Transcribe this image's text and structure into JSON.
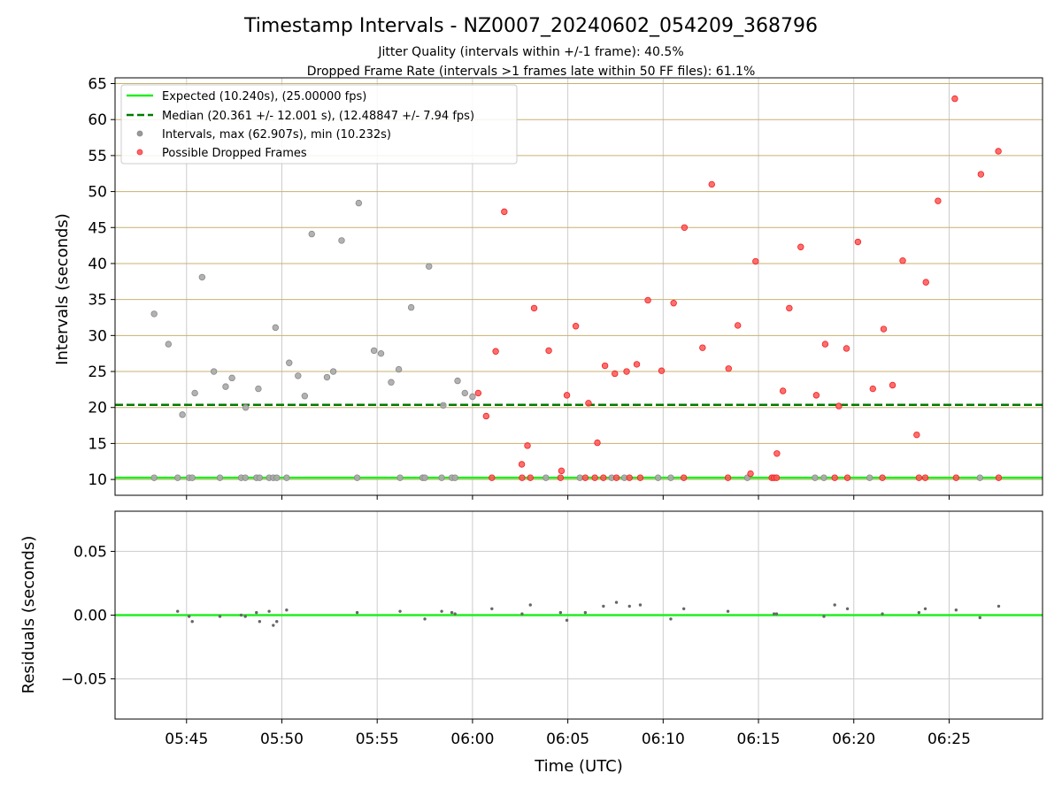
{
  "chart_data": [
    {
      "type": "scatter",
      "title": "Timestamp Intervals - NZ0007_20240602_054209_368796",
      "subtitle_1": "Jitter Quality (intervals within +/-1 frame): 40.5%",
      "subtitle_2": "Dropped Frame Rate (intervals >1 frames late within 50 FF files): 61.1%",
      "ylabel": "Intervals (seconds)",
      "ylim": [
        7.8,
        65.8
      ],
      "yticks": [
        "10",
        "15",
        "20",
        "25",
        "30",
        "35",
        "40",
        "45",
        "50",
        "55",
        "60",
        "65"
      ],
      "xlim": [
        "05:41:15",
        "06:29:54"
      ],
      "legend": {
        "placement": "top-left",
        "expected": "Expected (10.240s), (25.00000 fps)",
        "median": "Median (20.361 +/- 12.001 s), (12.48847 +/- 7.94 fps)",
        "intervals": "Intervals, max (62.907s), min (10.232s)",
        "dropped": "Possible Dropped Frames"
      },
      "expected_line": 10.24,
      "median_line": 20.361,
      "colors": {
        "expected": "#22ee22",
        "median": "#007a00",
        "intervals": "#999999",
        "dropped": "#ff4444",
        "grid": "#c8b070"
      },
      "intervals": [
        [
          "05:43:18",
          33.0
        ],
        [
          "05:44:03",
          28.8
        ],
        [
          "05:44:47",
          19.0
        ],
        [
          "05:45:26",
          22.0
        ],
        [
          "05:45:49",
          38.1
        ],
        [
          "05:46:26",
          25.0
        ],
        [
          "05:47:03",
          22.9
        ],
        [
          "05:47:23",
          24.1
        ],
        [
          "05:48:06",
          20.0
        ],
        [
          "05:48:46",
          22.6
        ],
        [
          "05:49:40",
          31.1
        ],
        [
          "05:50:23",
          26.2
        ],
        [
          "05:50:51",
          24.4
        ],
        [
          "05:51:12",
          21.6
        ],
        [
          "05:51:34",
          44.1
        ],
        [
          "05:52:22",
          24.2
        ],
        [
          "05:52:42",
          25.0
        ],
        [
          "05:53:08",
          43.2
        ],
        [
          "05:54:02",
          48.4
        ],
        [
          "05:54:50",
          27.9
        ],
        [
          "05:55:12",
          27.5
        ],
        [
          "05:55:44",
          23.5
        ],
        [
          "05:56:08",
          25.3
        ],
        [
          "05:56:47",
          33.9
        ],
        [
          "05:57:43",
          39.6
        ],
        [
          "05:58:28",
          20.3
        ],
        [
          "05:59:13",
          23.7
        ],
        [
          "05:59:36",
          22.0
        ],
        [
          "06:00:00",
          21.5
        ],
        [
          "05:43:18",
          10.24
        ],
        [
          "05:44:32",
          10.24
        ],
        [
          "05:45:08",
          10.24
        ],
        [
          "05:45:18",
          10.24
        ],
        [
          "05:46:45",
          10.24
        ],
        [
          "05:47:52",
          10.24
        ],
        [
          "05:48:05",
          10.24
        ],
        [
          "05:48:40",
          10.24
        ],
        [
          "05:48:50",
          10.24
        ],
        [
          "05:49:20",
          10.24
        ],
        [
          "05:49:33",
          10.24
        ],
        [
          "05:49:44",
          10.24
        ],
        [
          "05:50:15",
          10.24
        ],
        [
          "05:53:57",
          10.24
        ],
        [
          "05:56:12",
          10.24
        ],
        [
          "05:57:23",
          10.24
        ],
        [
          "05:57:30",
          10.24
        ],
        [
          "05:58:23",
          10.24
        ],
        [
          "05:58:55",
          10.24
        ],
        [
          "05:59:05",
          10.24
        ],
        [
          "06:03:51",
          10.24
        ],
        [
          "06:05:38",
          10.24
        ],
        [
          "06:07:18",
          10.24
        ],
        [
          "06:07:58",
          10.24
        ],
        [
          "06:09:44",
          10.24
        ],
        [
          "06:10:24",
          10.24
        ],
        [
          "06:14:25",
          10.24
        ],
        [
          "06:17:58",
          10.24
        ],
        [
          "06:18:26",
          10.24
        ],
        [
          "06:20:50",
          10.24
        ],
        [
          "06:26:37",
          10.24
        ]
      ],
      "dropped": [
        [
          "06:00:18",
          22.0
        ],
        [
          "06:00:43",
          18.8
        ],
        [
          "06:01:13",
          27.8
        ],
        [
          "06:01:40",
          47.2
        ],
        [
          "06:02:35",
          12.1
        ],
        [
          "06:02:53",
          14.7
        ],
        [
          "06:03:14",
          33.8
        ],
        [
          "06:04:00",
          27.9
        ],
        [
          "06:04:40",
          11.2
        ],
        [
          "06:04:57",
          21.7
        ],
        [
          "06:05:25",
          31.3
        ],
        [
          "06:06:05",
          20.6
        ],
        [
          "06:06:33",
          15.1
        ],
        [
          "06:06:57",
          25.8
        ],
        [
          "06:07:28",
          24.7
        ],
        [
          "06:08:05",
          25.0
        ],
        [
          "06:08:37",
          26.0
        ],
        [
          "06:09:12",
          34.9
        ],
        [
          "06:09:55",
          25.1
        ],
        [
          "06:10:33",
          34.5
        ],
        [
          "06:11:07",
          45.0
        ],
        [
          "06:12:04",
          28.3
        ],
        [
          "06:12:33",
          51.0
        ],
        [
          "06:13:26",
          25.4
        ],
        [
          "06:13:55",
          31.4
        ],
        [
          "06:14:51",
          40.3
        ],
        [
          "06:15:58",
          13.6
        ],
        [
          "06:16:17",
          22.3
        ],
        [
          "06:16:37",
          33.8
        ],
        [
          "06:17:13",
          42.3
        ],
        [
          "06:18:02",
          21.7
        ],
        [
          "06:18:30",
          28.8
        ],
        [
          "06:19:13",
          20.2
        ],
        [
          "06:19:37",
          28.2
        ],
        [
          "06:20:13",
          43.0
        ],
        [
          "06:21:00",
          22.6
        ],
        [
          "06:21:34",
          30.9
        ],
        [
          "06:22:02",
          23.1
        ],
        [
          "06:22:34",
          40.4
        ],
        [
          "06:23:18",
          16.2
        ],
        [
          "06:23:47",
          37.4
        ],
        [
          "06:24:25",
          48.7
        ],
        [
          "06:25:18",
          62.9
        ],
        [
          "06:26:40",
          52.4
        ],
        [
          "06:27:35",
          55.6
        ],
        [
          "06:14:35",
          10.8
        ],
        [
          "06:01:01",
          10.24
        ],
        [
          "06:02:36",
          10.24
        ],
        [
          "06:03:02",
          10.24
        ],
        [
          "06:04:37",
          10.24
        ],
        [
          "06:05:55",
          10.24
        ],
        [
          "06:06:25",
          10.24
        ],
        [
          "06:06:52",
          10.24
        ],
        [
          "06:07:33",
          10.24
        ],
        [
          "06:08:14",
          10.24
        ],
        [
          "06:08:48",
          10.24
        ],
        [
          "06:11:05",
          10.24
        ],
        [
          "06:13:24",
          10.24
        ],
        [
          "06:15:42",
          10.24
        ],
        [
          "06:15:49",
          10.24
        ],
        [
          "06:15:57",
          10.24
        ],
        [
          "06:19:00",
          10.24
        ],
        [
          "06:19:40",
          10.24
        ],
        [
          "06:21:30",
          10.24
        ],
        [
          "06:23:25",
          10.24
        ],
        [
          "06:23:45",
          10.24
        ],
        [
          "06:25:22",
          10.24
        ],
        [
          "06:27:36",
          10.24
        ]
      ]
    },
    {
      "type": "scatter",
      "xlabel": "Time (UTC)",
      "ylabel": "Residuals (seconds)",
      "ylim": [
        -0.0815,
        0.0815
      ],
      "yticks": [
        {
          "value": 0.05,
          "label": "0.05"
        },
        {
          "value": 0.0,
          "label": "0.00"
        },
        {
          "value": -0.05,
          "label": "−0.05"
        }
      ],
      "xticks": [
        "05:45",
        "05:50",
        "05:55",
        "06:00",
        "06:05",
        "06:10",
        "06:15",
        "06:20",
        "06:25"
      ],
      "zero_line": 0,
      "colors": {
        "zero": "#22ee22",
        "points": "#666666",
        "grid": "#cccccc"
      },
      "residuals": [
        [
          "05:44:32",
          0.003
        ],
        [
          "05:45:08",
          -0.001
        ],
        [
          "05:45:18",
          -0.005
        ],
        [
          "05:46:45",
          -0.001
        ],
        [
          "05:47:52",
          0.0
        ],
        [
          "05:48:05",
          -0.001
        ],
        [
          "05:48:40",
          0.002
        ],
        [
          "05:48:50",
          -0.005
        ],
        [
          "05:49:20",
          0.003
        ],
        [
          "05:49:33",
          -0.008
        ],
        [
          "05:49:44",
          -0.005
        ],
        [
          "05:50:15",
          0.004
        ],
        [
          "05:53:57",
          0.002
        ],
        [
          "05:56:12",
          0.003
        ],
        [
          "05:57:30",
          -0.003
        ],
        [
          "05:58:23",
          0.003
        ],
        [
          "05:58:55",
          0.002
        ],
        [
          "05:59:05",
          0.001
        ],
        [
          "06:01:01",
          0.005
        ],
        [
          "06:02:36",
          0.001
        ],
        [
          "06:03:02",
          0.008
        ],
        [
          "06:04:37",
          0.002
        ],
        [
          "06:04:57",
          -0.004
        ],
        [
          "06:05:55",
          0.002
        ],
        [
          "06:06:52",
          0.007
        ],
        [
          "06:07:33",
          0.01
        ],
        [
          "06:08:14",
          0.007
        ],
        [
          "06:08:48",
          0.008
        ],
        [
          "06:10:24",
          -0.003
        ],
        [
          "06:11:05",
          0.005
        ],
        [
          "06:13:24",
          0.003
        ],
        [
          "06:15:49",
          0.001
        ],
        [
          "06:15:57",
          0.001
        ],
        [
          "06:18:26",
          -0.001
        ],
        [
          "06:19:00",
          0.008
        ],
        [
          "06:19:40",
          0.005
        ],
        [
          "06:21:30",
          0.001
        ],
        [
          "06:23:25",
          0.002
        ],
        [
          "06:23:45",
          0.005
        ],
        [
          "06:25:22",
          0.004
        ],
        [
          "06:26:37",
          -0.002
        ],
        [
          "06:27:36",
          0.007
        ]
      ]
    }
  ]
}
